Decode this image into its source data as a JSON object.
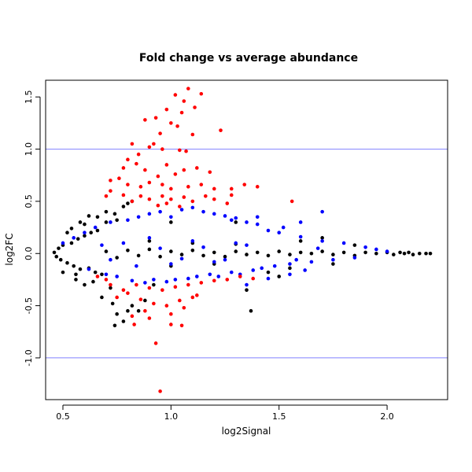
{
  "chart_data": {
    "type": "scatter",
    "title": "Fold change vs average abundance",
    "xlabel": "log2Signal",
    "ylabel": "log2FC",
    "xlim": [
      0.42,
      2.28
    ],
    "ylim": [
      -1.4,
      1.66
    ],
    "xticks": [
      0.5,
      1.0,
      1.5,
      2.0
    ],
    "xtick_labels": [
      "0.5",
      "1.0",
      "1.5",
      "2.0"
    ],
    "yticks": [
      -1.0,
      -0.5,
      0.0,
      0.5,
      1.0,
      1.5
    ],
    "ytick_labels": [
      "-1.0",
      "-0.5",
      "0.0",
      "0.5",
      "1.0",
      "1.5"
    ],
    "reference_lines_y": [
      -1.0,
      1.0
    ],
    "reference_line_color": "#8080ff",
    "grid": false,
    "legend": "none",
    "series": [
      {
        "color": "#000000",
        "points": [
          [
            0.46,
            0.01
          ],
          [
            0.47,
            -0.03
          ],
          [
            0.48,
            0.05
          ],
          [
            0.49,
            -0.06
          ],
          [
            0.5,
            0.08
          ],
          [
            0.52,
            -0.09
          ],
          [
            0.54,
            0.1
          ],
          [
            0.55,
            -0.12
          ],
          [
            0.57,
            0.14
          ],
          [
            0.58,
            -0.15
          ],
          [
            0.6,
            0.17
          ],
          [
            0.62,
            -0.14
          ],
          [
            0.63,
            0.2
          ],
          [
            0.65,
            -0.18
          ],
          [
            0.66,
            0.22
          ],
          [
            0.68,
            -0.2
          ],
          [
            0.5,
            -0.18
          ],
          [
            0.52,
            0.2
          ],
          [
            0.56,
            -0.25
          ],
          [
            0.6,
            0.28
          ],
          [
            0.64,
            -0.27
          ],
          [
            0.7,
            0.3
          ],
          [
            0.72,
            -0.33
          ],
          [
            0.75,
            0.32
          ],
          [
            0.68,
            -0.42
          ],
          [
            0.73,
            -0.48
          ],
          [
            0.74,
            -0.69
          ],
          [
            0.78,
            -0.65
          ],
          [
            0.8,
            -0.55
          ],
          [
            0.82,
            -0.5
          ],
          [
            0.85,
            -0.55
          ],
          [
            0.88,
            -0.45
          ],
          [
            0.62,
            0.36
          ],
          [
            0.66,
            0.35
          ],
          [
            0.7,
            0.4
          ],
          [
            0.74,
            0.38
          ],
          [
            0.78,
            0.45
          ],
          [
            0.8,
            0.48
          ],
          [
            0.82,
            0.5
          ],
          [
            0.75,
            -0.58
          ],
          [
            0.7,
            0.02
          ],
          [
            0.75,
            -0.04
          ],
          [
            0.8,
            0.03
          ],
          [
            0.85,
            -0.02
          ],
          [
            0.9,
            0.04
          ],
          [
            0.95,
            -0.03
          ],
          [
            1.0,
            0.02
          ],
          [
            1.05,
            -0.01
          ],
          [
            1.1,
            0.03
          ],
          [
            1.15,
            -0.02
          ],
          [
            1.2,
            0.01
          ],
          [
            1.25,
            -0.03
          ],
          [
            1.3,
            0.02
          ],
          [
            1.35,
            -0.01
          ],
          [
            1.4,
            0.01
          ],
          [
            1.45,
            -0.02
          ],
          [
            1.5,
            0.02
          ],
          [
            1.55,
            -0.01
          ],
          [
            1.6,
            0.01
          ],
          [
            1.65,
            0.0
          ],
          [
            1.7,
            0.02
          ],
          [
            1.75,
            -0.01
          ],
          [
            1.8,
            0.01
          ],
          [
            1.85,
            -0.02
          ],
          [
            1.9,
            0.01
          ],
          [
            1.95,
            0.0
          ],
          [
            2.0,
            0.01
          ],
          [
            2.03,
            -0.01
          ],
          [
            2.06,
            0.01
          ],
          [
            2.08,
            0.0
          ],
          [
            2.1,
            0.01
          ],
          [
            2.12,
            -0.01
          ],
          [
            2.15,
            0.0
          ],
          [
            2.18,
            0.0
          ],
          [
            2.2,
            0.0
          ],
          [
            0.9,
            0.12
          ],
          [
            1.0,
            -0.12
          ],
          [
            1.1,
            0.1
          ],
          [
            1.2,
            -0.1
          ],
          [
            1.3,
            0.09
          ],
          [
            1.37,
            -0.55
          ],
          [
            1.45,
            -0.18
          ],
          [
            1.55,
            -0.14
          ],
          [
            1.6,
            0.12
          ],
          [
            1.3,
            0.3
          ],
          [
            1.35,
            -0.35
          ],
          [
            0.92,
            -0.3
          ],
          [
            1.0,
            0.3
          ],
          [
            1.5,
            -0.22
          ],
          [
            1.7,
            0.15
          ],
          [
            1.75,
            -0.1
          ],
          [
            1.85,
            0.08
          ],
          [
            0.58,
            0.3
          ],
          [
            0.6,
            -0.3
          ],
          [
            0.54,
            0.24
          ],
          [
            0.56,
            -0.2
          ]
        ]
      },
      {
        "color": "#0000ff",
        "points": [
          [
            0.5,
            0.1
          ],
          [
            0.55,
            0.15
          ],
          [
            0.6,
            0.2
          ],
          [
            0.62,
            -0.15
          ],
          [
            0.65,
            0.25
          ],
          [
            0.7,
            -0.2
          ],
          [
            0.72,
            0.3
          ],
          [
            0.75,
            -0.22
          ],
          [
            0.8,
            0.32
          ],
          [
            0.82,
            -0.26
          ],
          [
            0.85,
            0.35
          ],
          [
            0.88,
            -0.28
          ],
          [
            0.9,
            0.38
          ],
          [
            0.92,
            -0.25
          ],
          [
            0.95,
            0.4
          ],
          [
            0.98,
            -0.27
          ],
          [
            1.0,
            0.35
          ],
          [
            1.02,
            -0.25
          ],
          [
            1.05,
            0.42
          ],
          [
            1.08,
            -0.24
          ],
          [
            1.1,
            0.44
          ],
          [
            1.12,
            -0.22
          ],
          [
            1.15,
            0.4
          ],
          [
            1.18,
            -0.2
          ],
          [
            1.2,
            0.38
          ],
          [
            1.22,
            -0.22
          ],
          [
            1.25,
            0.36
          ],
          [
            1.28,
            -0.18
          ],
          [
            1.3,
            0.34
          ],
          [
            1.32,
            -0.2
          ],
          [
            1.35,
            0.3
          ],
          [
            1.38,
            -0.16
          ],
          [
            1.4,
            0.28
          ],
          [
            1.42,
            -0.14
          ],
          [
            1.45,
            0.22
          ],
          [
            1.48,
            -0.12
          ],
          [
            1.5,
            0.2
          ],
          [
            1.55,
            -0.1
          ],
          [
            1.6,
            0.16
          ],
          [
            1.65,
            -0.08
          ],
          [
            1.7,
            0.12
          ],
          [
            1.75,
            -0.06
          ],
          [
            1.8,
            0.1
          ],
          [
            1.85,
            -0.04
          ],
          [
            1.9,
            0.06
          ],
          [
            1.95,
            0.04
          ],
          [
            2.0,
            0.02
          ],
          [
            1.7,
            0.4
          ],
          [
            1.6,
            0.3
          ],
          [
            1.55,
            -0.2
          ],
          [
            1.4,
            0.35
          ],
          [
            1.35,
            -0.3
          ],
          [
            1.28,
            0.32
          ],
          [
            1.45,
            -0.24
          ],
          [
            1.52,
            0.25
          ],
          [
            1.62,
            -0.16
          ],
          [
            0.9,
            0.15
          ],
          [
            1.0,
            -0.1
          ],
          [
            1.1,
            0.12
          ],
          [
            1.2,
            -0.08
          ],
          [
            1.3,
            0.1
          ],
          [
            0.95,
            0.05
          ],
          [
            1.05,
            -0.05
          ],
          [
            1.15,
            0.06
          ],
          [
            1.25,
            -0.06
          ],
          [
            1.35,
            0.08
          ],
          [
            0.68,
            0.08
          ],
          [
            0.72,
            -0.06
          ],
          [
            0.78,
            0.1
          ],
          [
            0.84,
            -0.12
          ],
          [
            1.58,
            -0.06
          ],
          [
            1.68,
            0.05
          ]
        ]
      },
      {
        "color": "#ff0000",
        "points": [
          [
            1.08,
            1.58
          ],
          [
            1.02,
            1.52
          ],
          [
            1.14,
            1.53
          ],
          [
            1.06,
            1.46
          ],
          [
            1.11,
            1.4
          ],
          [
            0.98,
            1.38
          ],
          [
            1.05,
            1.35
          ],
          [
            0.93,
            1.3
          ],
          [
            0.88,
            1.28
          ],
          [
            1.0,
            1.25
          ],
          [
            1.03,
            1.22
          ],
          [
            0.95,
            1.15
          ],
          [
            1.1,
            1.14
          ],
          [
            1.23,
            1.18
          ],
          [
            0.92,
            1.05
          ],
          [
            0.82,
            1.05
          ],
          [
            0.9,
            1.02
          ],
          [
            0.96,
            1.0
          ],
          [
            1.04,
            0.99
          ],
          [
            1.07,
            0.98
          ],
          [
            0.85,
            0.95
          ],
          [
            0.8,
            0.9
          ],
          [
            0.84,
            0.86
          ],
          [
            0.78,
            0.82
          ],
          [
            0.88,
            0.8
          ],
          [
            0.98,
            0.85
          ],
          [
            1.06,
            0.8
          ],
          [
            1.12,
            0.82
          ],
          [
            1.18,
            0.78
          ],
          [
            1.02,
            0.76
          ],
          [
            0.94,
            0.74
          ],
          [
            0.76,
            0.72
          ],
          [
            0.72,
            0.7
          ],
          [
            0.8,
            0.66
          ],
          [
            0.86,
            0.64
          ],
          [
            0.9,
            0.68
          ],
          [
            0.96,
            0.66
          ],
          [
            1.0,
            0.62
          ],
          [
            1.08,
            0.64
          ],
          [
            1.14,
            0.66
          ],
          [
            1.2,
            0.62
          ],
          [
            1.28,
            0.62
          ],
          [
            1.34,
            0.66
          ],
          [
            1.4,
            0.64
          ],
          [
            1.28,
            0.56
          ],
          [
            1.2,
            0.52
          ],
          [
            1.1,
            0.5
          ],
          [
            1.0,
            0.52
          ],
          [
            0.9,
            0.52
          ],
          [
            0.82,
            0.5
          ],
          [
            0.72,
            0.6
          ],
          [
            0.7,
            0.55
          ],
          [
            0.78,
            0.56
          ],
          [
            0.86,
            0.55
          ],
          [
            0.96,
            0.55
          ],
          [
            1.06,
            0.54
          ],
          [
            1.16,
            0.55
          ],
          [
            1.26,
            0.48
          ],
          [
            1.56,
            0.5
          ],
          [
            1.04,
            0.45
          ],
          [
            0.94,
            0.46
          ],
          [
            0.98,
            0.48
          ],
          [
            0.72,
            -0.3
          ],
          [
            0.78,
            -0.35
          ],
          [
            0.84,
            -0.3
          ],
          [
            0.9,
            -0.33
          ],
          [
            0.96,
            -0.35
          ],
          [
            1.02,
            -0.32
          ],
          [
            1.08,
            -0.3
          ],
          [
            1.14,
            -0.28
          ],
          [
            1.2,
            -0.26
          ],
          [
            1.26,
            -0.25
          ],
          [
            1.32,
            -0.22
          ],
          [
            1.38,
            -0.24
          ],
          [
            0.75,
            -0.42
          ],
          [
            0.8,
            -0.38
          ],
          [
            0.86,
            -0.44
          ],
          [
            0.92,
            -0.48
          ],
          [
            0.98,
            -0.5
          ],
          [
            1.04,
            -0.45
          ],
          [
            1.1,
            -0.42
          ],
          [
            1.06,
            -0.52
          ],
          [
            0.88,
            -0.55
          ],
          [
            0.82,
            -0.6
          ],
          [
            0.9,
            -0.62
          ],
          [
            1.0,
            -0.68
          ],
          [
            1.05,
            -0.69
          ],
          [
            0.83,
            -0.68
          ],
          [
            0.93,
            -0.86
          ],
          [
            0.95,
            -1.32
          ],
          [
            1.0,
            -0.58
          ],
          [
            1.12,
            -0.4
          ],
          [
            0.7,
            -0.25
          ],
          [
            0.66,
            -0.22
          ]
        ]
      }
    ]
  }
}
